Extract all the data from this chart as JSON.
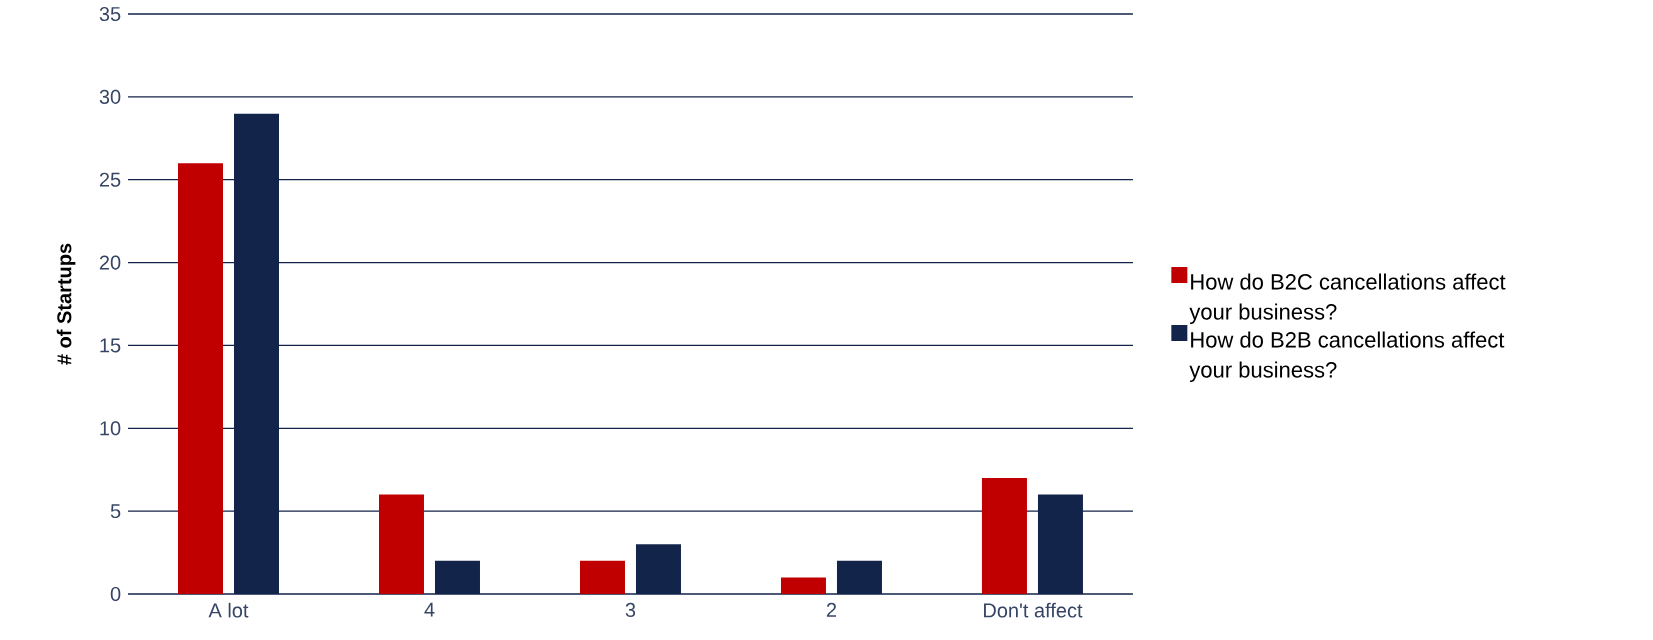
{
  "chart_data": {
    "type": "bar",
    "ylabel": "# of Startups",
    "categories": [
      "A lot",
      "4",
      "3",
      "2",
      "Don't affect"
    ],
    "series": [
      {
        "name": "How do B2C cancellations affect your business?",
        "color": "#c00000",
        "values": [
          26,
          6,
          2,
          1,
          7
        ]
      },
      {
        "name": "How do B2B cancellations affect your business?",
        "color": "#13244a",
        "values": [
          29,
          2,
          3,
          2,
          6
        ]
      }
    ],
    "ylim": [
      0,
      35
    ],
    "yticks": [
      0,
      5,
      10,
      15,
      20,
      25,
      30,
      35
    ],
    "grid": "y",
    "legend": "right"
  }
}
